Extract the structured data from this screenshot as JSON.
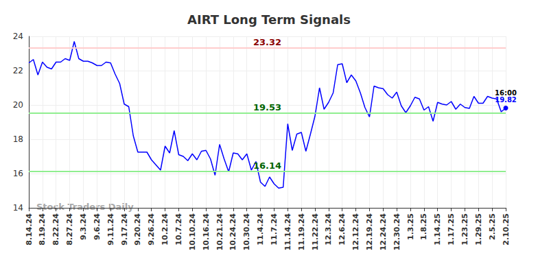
{
  "chart_data": {
    "type": "line",
    "title": "AIRT Long Term Signals",
    "categories": [
      "8.14.24",
      null,
      null,
      "8.19.24",
      null,
      null,
      "8.22.24",
      null,
      null,
      "8.27.24",
      null,
      null,
      "9.3.24",
      null,
      null,
      "9.6.24",
      null,
      null,
      "9.11.24",
      null,
      null,
      "9.17.24",
      null,
      null,
      "9.20.24",
      null,
      null,
      "9.26.24",
      null,
      null,
      "10.2.24",
      null,
      null,
      "10.7.24",
      null,
      null,
      "10.10.24",
      null,
      null,
      "10.16.24",
      null,
      null,
      "10.21.24",
      null,
      null,
      "10.24.24",
      null,
      null,
      "10.30.24",
      null,
      null,
      "11.4.24",
      null,
      null,
      "11.7.24",
      null,
      null,
      "11.14.24",
      null,
      null,
      "11.19.24",
      null,
      null,
      "11.22.24",
      null,
      null,
      "12.3.24",
      null,
      null,
      "12.6.24",
      null,
      null,
      "12.12.24",
      null,
      null,
      "12.19.24",
      null,
      null,
      "12.24.24",
      null,
      null,
      "12.30.24",
      null,
      null,
      "1.3.25",
      null,
      null,
      "1.8.25",
      null,
      null,
      "1.14.25",
      null,
      null,
      "1.17.25",
      null,
      null,
      "1.23.25",
      null,
      null,
      "1.29.25",
      null,
      null,
      "2.5.25",
      null,
      null,
      "2.10.25"
    ],
    "values": [
      22.45,
      22.65,
      21.75,
      22.5,
      22.2,
      22.1,
      22.5,
      22.5,
      22.7,
      22.6,
      23.7,
      22.7,
      22.55,
      22.55,
      22.45,
      22.3,
      22.3,
      22.5,
      22.45,
      21.8,
      21.25,
      20.05,
      19.9,
      18.2,
      17.25,
      17.25,
      17.25,
      16.8,
      16.5,
      16.2,
      17.6,
      17.2,
      18.5,
      17.1,
      17.0,
      16.75,
      17.15,
      16.8,
      17.3,
      17.35,
      16.85,
      15.9,
      17.7,
      16.85,
      16.1,
      17.2,
      17.15,
      16.8,
      17.15,
      16.2,
      16.7,
      15.5,
      15.25,
      15.8,
      15.4,
      15.15,
      15.2,
      18.9,
      17.35,
      18.3,
      18.4,
      17.3,
      18.3,
      19.35,
      21.0,
      19.75,
      20.15,
      20.7,
      22.35,
      22.4,
      21.3,
      21.75,
      21.4,
      20.7,
      19.85,
      19.3,
      21.1,
      21.0,
      20.95,
      20.6,
      20.4,
      20.75,
      19.95,
      19.55,
      19.95,
      20.45,
      20.35,
      19.7,
      19.9,
      19.05,
      20.15,
      20.05,
      20.0,
      20.2,
      19.75,
      20.05,
      19.85,
      19.8,
      20.5,
      20.1,
      20.1,
      20.5,
      20.4,
      20.35,
      19.6,
      19.82
    ],
    "color": "#0000ff",
    "ylim": [
      14,
      24
    ],
    "yticks": [
      14,
      16,
      18,
      20,
      22,
      24
    ],
    "grid": true,
    "reference_lines": [
      {
        "value": 23.32,
        "color": "#ffcccc"
      },
      {
        "value": 19.53,
        "color": "#90ee90"
      },
      {
        "value": 16.14,
        "color": "#90ee90"
      }
    ],
    "last_point_label": "16:00",
    "watermark": "Stock Traders Daily"
  }
}
